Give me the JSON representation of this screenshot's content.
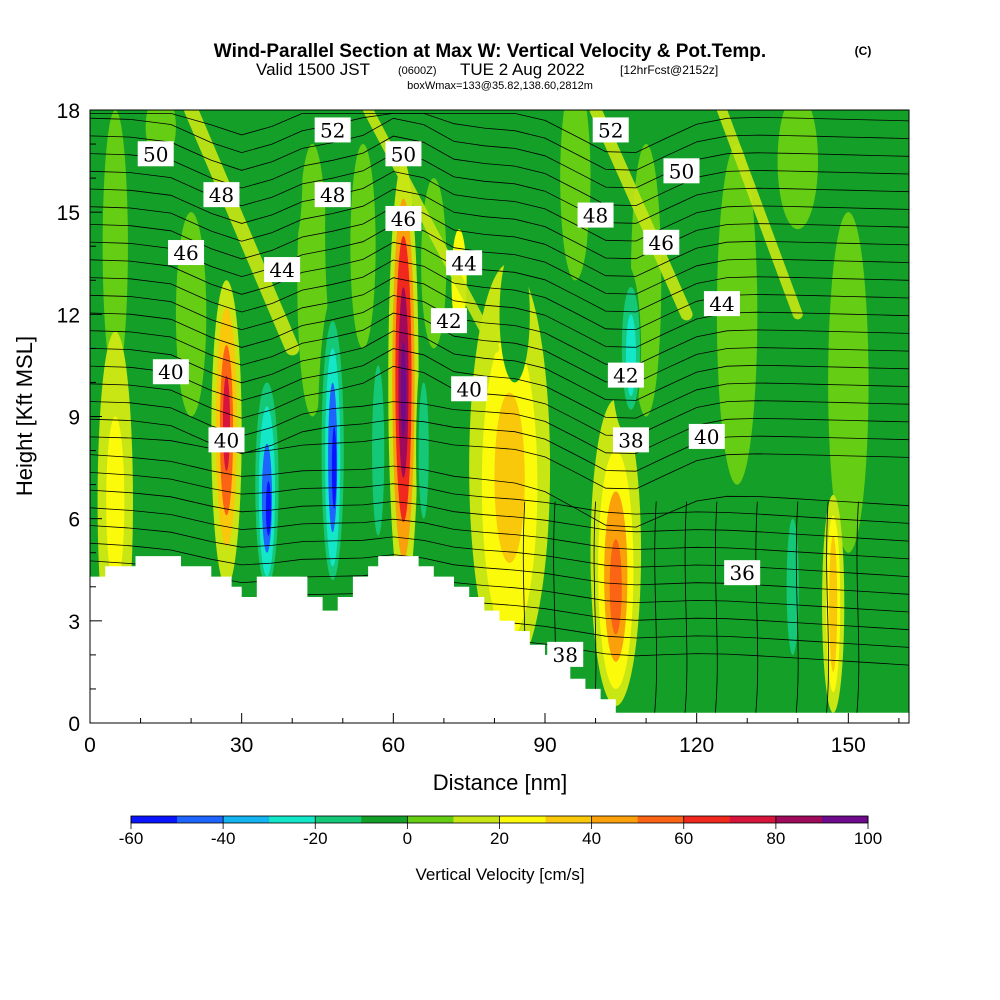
{
  "header": {
    "title": "Wind-Parallel Section at Max W: Vertical Velocity & Pot.Temp.",
    "title_mark": "(C)",
    "valid_prefix": "Valid 1500 JST",
    "valid_zone": "(0600Z)",
    "valid_date": "TUE 2 Aug 2022",
    "valid_fcst": "[12hrFcst@2152z]",
    "box_info": "boxWmax=133@35.82,138.60,2812m"
  },
  "chart_data": {
    "type": "heatmap",
    "xlabel": "Distance [nm]",
    "ylabel": "Height [Kft MSL]",
    "xlim": [
      0,
      162
    ],
    "ylim": [
      0,
      18
    ],
    "x_ticks": [
      0,
      30,
      60,
      90,
      120,
      150
    ],
    "y_ticks": [
      0,
      3,
      6,
      9,
      12,
      15,
      18
    ],
    "colorbar": {
      "label": "Vertical Velocity [cm/s]",
      "range": [
        -60,
        100
      ],
      "step": 10,
      "tick_values": [
        -60,
        -40,
        -20,
        0,
        20,
        40,
        60,
        80,
        100
      ],
      "colors": [
        "#0a14ff",
        "#1e64ff",
        "#14b4f0",
        "#14e6c8",
        "#14c878",
        "#14a028",
        "#64cd14",
        "#c8e614",
        "#fafa0a",
        "#fac80a",
        "#faa00a",
        "#fa6414",
        "#f0281e",
        "#d7143c",
        "#a00a5a",
        "#6e0a8c"
      ]
    },
    "contour_labels": [
      {
        "text": "52",
        "x": 48,
        "y": 17.4
      },
      {
        "text": "52",
        "x": 103,
        "y": 17.4
      },
      {
        "text": "50",
        "x": 13,
        "y": 16.7
      },
      {
        "text": "50",
        "x": 62,
        "y": 16.7
      },
      {
        "text": "50",
        "x": 117,
        "y": 16.2
      },
      {
        "text": "48",
        "x": 26,
        "y": 15.5
      },
      {
        "text": "48",
        "x": 48,
        "y": 15.5
      },
      {
        "text": "48",
        "x": 100,
        "y": 14.9
      },
      {
        "text": "46",
        "x": 19,
        "y": 13.8
      },
      {
        "text": "46",
        "x": 62,
        "y": 14.8
      },
      {
        "text": "46",
        "x": 113,
        "y": 14.1
      },
      {
        "text": "44",
        "x": 38,
        "y": 13.3
      },
      {
        "text": "44",
        "x": 74,
        "y": 13.5
      },
      {
        "text": "44",
        "x": 125,
        "y": 12.3
      },
      {
        "text": "42",
        "x": 71,
        "y": 11.8
      },
      {
        "text": "42",
        "x": 106,
        "y": 10.2
      },
      {
        "text": "40",
        "x": 16,
        "y": 10.3
      },
      {
        "text": "40",
        "x": 27,
        "y": 8.3
      },
      {
        "text": "40",
        "x": 75,
        "y": 9.8
      },
      {
        "text": "40",
        "x": 122,
        "y": 8.4
      },
      {
        "text": "38",
        "x": 107,
        "y": 8.3
      },
      {
        "text": "38",
        "x": 94,
        "y": 2.0
      },
      {
        "text": "36",
        "x": 129,
        "y": 4.4
      }
    ]
  }
}
